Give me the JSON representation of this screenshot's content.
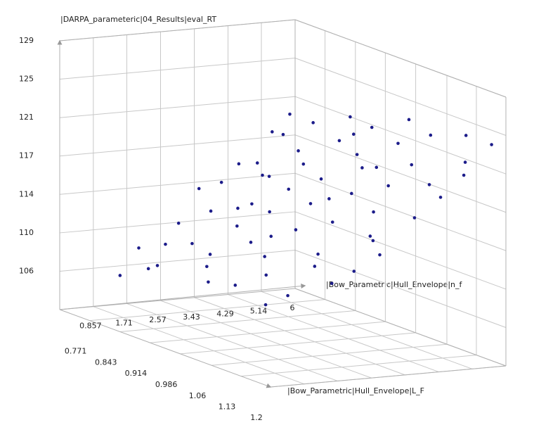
{
  "chart_data": {
    "type": "scatter3d",
    "z_label": "|DARPA_parameteric|04_Results|eval_RT",
    "x_label": "|Bow_Parametric|Hull_Envelope|n_f",
    "y_label": "|Bow_Parametric|Hull_Envelope|L_F",
    "color": "#1c1c8a",
    "grid": true,
    "xlim": [
      0,
      6
    ],
    "xticks": [
      0.857,
      1.71,
      2.57,
      3.43,
      4.29,
      5.14,
      6
    ],
    "ylim": [
      0.7,
      1.2
    ],
    "yticks": [
      0.771,
      0.843,
      0.914,
      0.986,
      1.06,
      1.13,
      1.2
    ],
    "zlim": [
      102.17,
      129
    ],
    "zticks": [
      {
        "value": 106,
        "label": "106"
      },
      {
        "value": 109.83,
        "label": "110"
      },
      {
        "value": 113.67,
        "label": "114"
      },
      {
        "value": 117.5,
        "label": "117"
      },
      {
        "value": 121.33,
        "label": "121"
      },
      {
        "value": 125.17,
        "label": "125"
      },
      {
        "value": 129,
        "label": "129"
      }
    ],
    "x": [
      1.0,
      1.2,
      1.1,
      1.4,
      1.5,
      1.3,
      1.8,
      1.9,
      2.0,
      2.1,
      2.3,
      2.4,
      2.5,
      2.6,
      2.8,
      2.9,
      3.0,
      3.1,
      3.2,
      3.3,
      3.4,
      3.5,
      3.6,
      3.7,
      3.8,
      3.9,
      4.0,
      4.1,
      4.2,
      4.3,
      4.4,
      4.5,
      4.6,
      4.7,
      4.8,
      4.9,
      5.0,
      5.1,
      5.2,
      5.3,
      5.4,
      5.5,
      5.6,
      5.7,
      5.8,
      5.9,
      6.0,
      5.95,
      1.6,
      2.2,
      2.7,
      3.15,
      3.55,
      4.05,
      4.55,
      5.05,
      5.45,
      5.85,
      1.25,
      2.45,
      3.75,
      4.85,
      5.65,
      0.95,
      2.05,
      3.25,
      4.35,
      5.25
    ],
    "y": [
      0.75,
      0.82,
      0.95,
      0.78,
      1.05,
      1.12,
      0.72,
      0.88,
      1.0,
      1.15,
      0.8,
      0.93,
      1.08,
      0.74,
      0.86,
      0.99,
      1.18,
      0.77,
      0.9,
      1.04,
      1.12,
      0.83,
      0.96,
      1.1,
      0.73,
      0.88,
      1.02,
      1.16,
      0.79,
      0.92,
      1.07,
      0.75,
      0.85,
      0.98,
      1.13,
      0.81,
      0.94,
      1.06,
      0.72,
      0.87,
      1.0,
      1.15,
      0.78,
      0.91,
      1.04,
      0.84,
      0.97,
      1.11,
      0.9,
      1.1,
      0.95,
      1.15,
      0.7,
      0.82,
      1.18,
      0.76,
      0.89,
      1.18,
      1.0,
      1.17,
      0.99,
      1.0,
      0.72,
      1.1,
      0.76,
      0.82,
      0.72,
      1.17
    ],
    "z": [
      106.0,
      108.0,
      108.4,
      107.0,
      110.5,
      109.6,
      108.0,
      109.8,
      111.4,
      111.0,
      109.5,
      111.6,
      112.7,
      110.5,
      112.0,
      113.6,
      114.0,
      112.0,
      113.9,
      115.0,
      114.8,
      113.5,
      115.5,
      116.8,
      114.0,
      115.6,
      117.3,
      117.0,
      115.5,
      117.1,
      118.7,
      116.0,
      117.4,
      119.0,
      119.6,
      118.0,
      119.6,
      120.4,
      118.4,
      119.8,
      121.5,
      121.9,
      120.1,
      121.6,
      122.8,
      121.5,
      123.2,
      123.8,
      109.0,
      111.9,
      112.4,
      114.9,
      113.0,
      115.9,
      119.2,
      118.8,
      120.7,
      124.0,
      108.8,
      112.4,
      116.4,
      119.3,
      120.0,
      108.5,
      108.9,
      113.0,
      115.5,
      121.0
    ]
  }
}
